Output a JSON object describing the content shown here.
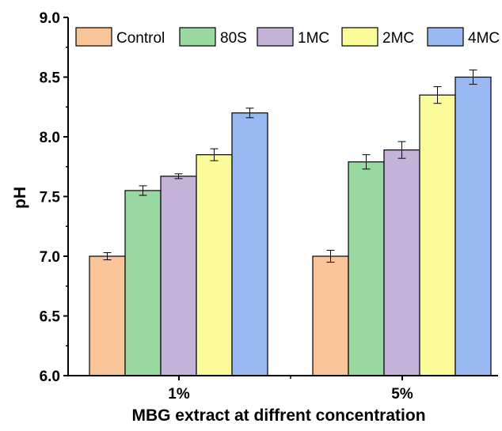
{
  "chart_data": {
    "type": "bar",
    "categories": [
      "1%",
      "5%"
    ],
    "xlabel": "MBG extract at diffrent concentration",
    "ylabel": "pH",
    "ylim": [
      6.0,
      9.0
    ],
    "yticks": [
      "6.0",
      "6.5",
      "7.0",
      "7.5",
      "8.0",
      "8.5",
      "9.0"
    ],
    "legend_position": "top",
    "grid": false,
    "series": [
      {
        "name": "Control",
        "color": "#f9c497",
        "values": [
          7.0,
          7.0
        ],
        "errors": [
          0.03,
          0.05
        ]
      },
      {
        "name": "80S",
        "color": "#99d9a1",
        "values": [
          7.55,
          7.79
        ],
        "errors": [
          0.04,
          0.06
        ]
      },
      {
        "name": "1MC",
        "color": "#c5b2d8",
        "values": [
          7.67,
          7.89
        ],
        "errors": [
          0.02,
          0.07
        ]
      },
      {
        "name": "2MC",
        "color": "#fbfb9a",
        "values": [
          7.85,
          8.35
        ],
        "errors": [
          0.05,
          0.07
        ]
      },
      {
        "name": "4MC",
        "color": "#9ab9f2",
        "values": [
          8.2,
          8.5
        ],
        "errors": [
          0.04,
          0.06
        ]
      }
    ]
  }
}
